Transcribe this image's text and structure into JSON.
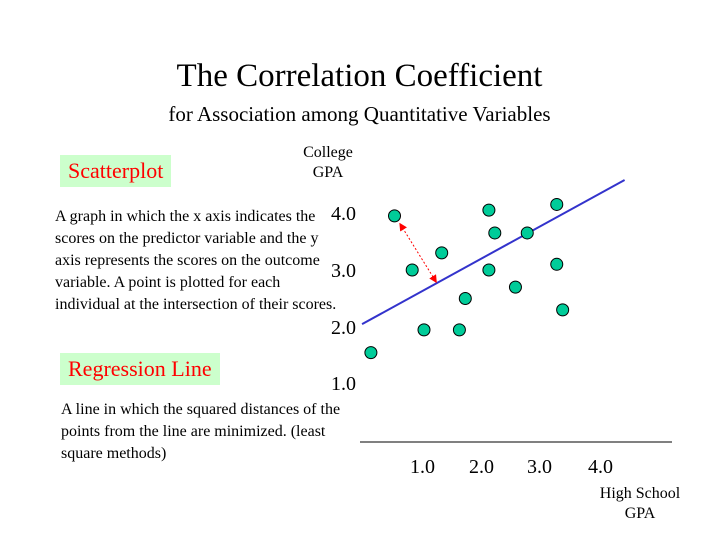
{
  "slide": {
    "title": "The Correlation Coefficient",
    "subtitle": "for Association among Quantitative Variables",
    "scatterplot_label": "Scatterplot",
    "scatterplot_description": "A graph in which the x axis indicates the scores on the predictor variable and the y axis represents the scores on the outcome variable. A point is plotted for each individual at the intersection of their scores.",
    "regression_label": "Regression Line",
    "regression_description": "A line in which the squared distances of the points from the line are minimized. (least square methods)"
  },
  "colors": {
    "label_bg": "#ccffcc",
    "label_text": "#ff0000",
    "points": "#00cc99",
    "regression_line": "#3333cc",
    "distance_arrow": "#ff0000"
  },
  "chart_data": {
    "type": "scatter",
    "xlabel": "High School GPA",
    "ylabel": "College GPA",
    "xlabel_lines": [
      "High School",
      "GPA"
    ],
    "ylabel_lines": [
      "College",
      "GPA"
    ],
    "x_ticks": [
      "1.0",
      "2.0",
      "3.0",
      "4.0"
    ],
    "y_ticks": [
      "4.0",
      "3.0",
      "2.0",
      "1.0"
    ],
    "xlim": [
      0,
      5.2
    ],
    "ylim": [
      0,
      4.6
    ],
    "grid": false,
    "points": [
      {
        "x": 0.1,
        "y": 1.55
      },
      {
        "x": 0.5,
        "y": 3.95
      },
      {
        "x": 0.8,
        "y": 3.0
      },
      {
        "x": 1.0,
        "y": 1.95
      },
      {
        "x": 1.3,
        "y": 3.3
      },
      {
        "x": 1.6,
        "y": 1.95
      },
      {
        "x": 1.7,
        "y": 2.5
      },
      {
        "x": 2.1,
        "y": 4.05
      },
      {
        "x": 2.1,
        "y": 3.0
      },
      {
        "x": 2.2,
        "y": 3.65
      },
      {
        "x": 2.55,
        "y": 2.7
      },
      {
        "x": 2.75,
        "y": 3.65
      },
      {
        "x": 3.25,
        "y": 4.15
      },
      {
        "x": 3.25,
        "y": 3.1
      },
      {
        "x": 3.35,
        "y": 2.3
      }
    ],
    "regression_line": {
      "x1": -0.05,
      "y1": 2.05,
      "x2": 4.4,
      "y2": 4.58
    },
    "residual_arrow": {
      "x1": 0.6,
      "y1": 3.8,
      "x2": 1.2,
      "y2": 2.8
    }
  }
}
